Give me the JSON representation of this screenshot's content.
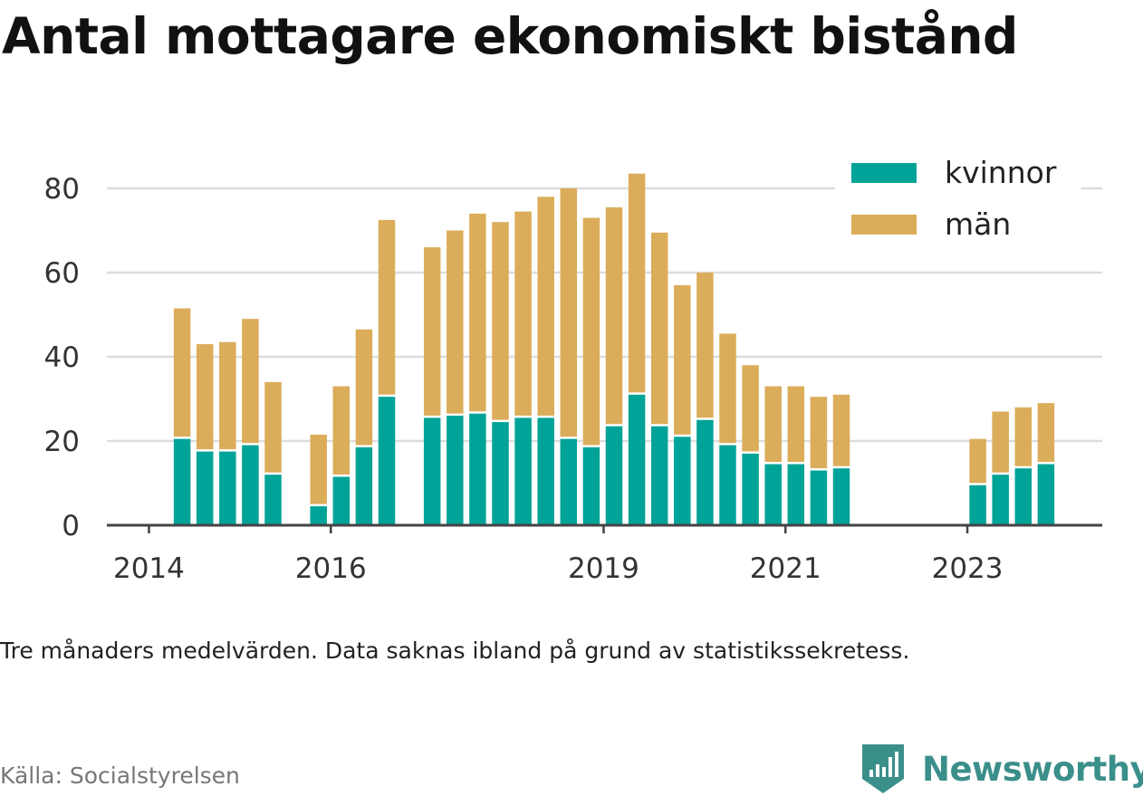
{
  "title": "Antal mottagare ekonomiskt bistånd",
  "note": "Tre månaders medelvärden. Data saknas ibland på grund av statistikssekretess.",
  "source": "Källa: Socialstyrelsen",
  "brand": "Newsworthy",
  "colors": {
    "kvinnor": "#00a398",
    "man": "#dbad5a",
    "grid": "#dddddd",
    "axis": "#444444",
    "brand": "#3b8f8a"
  },
  "chart_data": {
    "type": "bar",
    "stacked": true,
    "x_ticks": [
      "2014",
      "2016",
      "2019",
      "2021",
      "2023"
    ],
    "y_ticks": [
      0,
      20,
      40,
      60,
      80
    ],
    "ylim": [
      0,
      88
    ],
    "legend": [
      "kvinnor",
      "män"
    ],
    "legend_position": "top-right",
    "grid": true,
    "categories": [
      "2014Q2",
      "2014Q3",
      "2014Q4",
      "2015Q1",
      "2015Q2",
      "2015Q4",
      "2016Q1",
      "2016Q2",
      "2016Q3",
      "2017Q1",
      "2017Q2",
      "2017Q3",
      "2017Q4",
      "2018Q1",
      "2018Q2",
      "2018Q3",
      "2018Q4",
      "2019Q1",
      "2019Q2",
      "2019Q3",
      "2019Q4",
      "2020Q1",
      "2020Q2",
      "2020Q3",
      "2020Q4",
      "2021Q1",
      "2021Q2",
      "2021Q3",
      "2023Q1",
      "2023Q2",
      "2023Q3",
      "2023Q4"
    ],
    "series": [
      {
        "name": "kvinnor",
        "values": [
          20.5,
          17.5,
          17.5,
          19,
          12,
          4.5,
          11.5,
          18.5,
          30.5,
          25.5,
          26,
          26.5,
          24.5,
          25.5,
          25.5,
          20.5,
          18.5,
          23.5,
          31,
          23.5,
          21,
          25,
          19,
          17,
          14.5,
          14.5,
          13,
          13.5,
          9.5,
          12,
          13.5,
          14.5
        ]
      },
      {
        "name": "män",
        "values": [
          31,
          25.5,
          26,
          30,
          22,
          17,
          21.5,
          28,
          42,
          40.5,
          44,
          47.5,
          47.5,
          49,
          52.5,
          59.5,
          54.5,
          52,
          52.5,
          46,
          36,
          35,
          26.5,
          21,
          18.5,
          18.5,
          17.5,
          17.5,
          11,
          15,
          14.5,
          14.5
        ]
      }
    ]
  }
}
